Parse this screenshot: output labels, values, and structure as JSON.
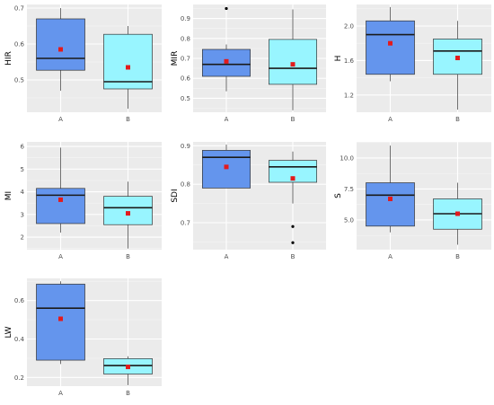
{
  "chart_data": [
    {
      "type": "boxplot",
      "ylabel": "HIR",
      "categories": [
        "A",
        "B"
      ],
      "ylim": [
        0.41,
        0.71
      ],
      "yticks": [
        0.5,
        0.6,
        0.7
      ],
      "ytick_labels": [
        "0.5",
        "0.6",
        "0.7"
      ],
      "boxes": [
        {
          "category": "A",
          "min": 0.47,
          "q1": 0.527,
          "median": 0.56,
          "q3": 0.67,
          "max": 0.7,
          "mean": 0.585,
          "outliers": []
        },
        {
          "category": "B",
          "min": 0.42,
          "q1": 0.475,
          "median": 0.495,
          "q3": 0.627,
          "max": 0.65,
          "mean": 0.535,
          "outliers": []
        }
      ]
    },
    {
      "type": "boxplot",
      "ylabel": "MIR",
      "categories": [
        "A",
        "B"
      ],
      "ylim": [
        0.43,
        0.97
      ],
      "yticks": [
        0.5,
        0.6,
        0.7,
        0.8,
        0.9
      ],
      "ytick_labels": [
        "0.5",
        "0.6",
        "0.7",
        "0.8",
        "0.9"
      ],
      "boxes": [
        {
          "category": "A",
          "min": 0.535,
          "q1": 0.61,
          "median": 0.67,
          "q3": 0.745,
          "max": 0.77,
          "mean": 0.685,
          "outliers": [
            0.95
          ]
        },
        {
          "category": "B",
          "min": 0.44,
          "q1": 0.57,
          "median": 0.65,
          "q3": 0.795,
          "max": 0.945,
          "mean": 0.67,
          "outliers": []
        }
      ]
    },
    {
      "type": "boxplot",
      "ylabel": "H",
      "categories": [
        "A",
        "B"
      ],
      "ylim": [
        1.0,
        2.25
      ],
      "yticks": [
        1.2,
        1.6,
        2.0
      ],
      "ytick_labels": [
        "1.2",
        "1.6",
        "2.0"
      ],
      "boxes": [
        {
          "category": "A",
          "min": 1.36,
          "q1": 1.44,
          "median": 1.9,
          "q3": 2.06,
          "max": 2.22,
          "mean": 1.8,
          "outliers": []
        },
        {
          "category": "B",
          "min": 1.03,
          "q1": 1.44,
          "median": 1.71,
          "q3": 1.85,
          "max": 2.06,
          "mean": 1.63,
          "outliers": []
        }
      ]
    },
    {
      "type": "boxplot",
      "ylabel": "MI",
      "categories": [
        "A",
        "B"
      ],
      "ylim": [
        1.45,
        6.2
      ],
      "yticks": [
        2,
        3,
        4,
        5,
        6
      ],
      "ytick_labels": [
        "2",
        "3",
        "4",
        "5",
        "6"
      ],
      "boxes": [
        {
          "category": "A",
          "min": 2.2,
          "q1": 2.6,
          "median": 3.85,
          "q3": 4.15,
          "max": 5.95,
          "mean": 3.65,
          "outliers": []
        },
        {
          "category": "B",
          "min": 1.5,
          "q1": 2.55,
          "median": 3.3,
          "q3": 3.8,
          "max": 4.45,
          "mean": 3.05,
          "outliers": []
        }
      ]
    },
    {
      "type": "boxplot",
      "ylabel": "SDI",
      "categories": [
        "A",
        "B"
      ],
      "ylim": [
        0.63,
        0.91
      ],
      "yticks": [
        0.7,
        0.8,
        0.9
      ],
      "ytick_labels": [
        "0.7",
        "0.8",
        "0.9"
      ],
      "boxes": [
        {
          "category": "A",
          "min": 0.79,
          "q1": 0.79,
          "median": 0.87,
          "q3": 0.888,
          "max": 0.903,
          "mean": 0.845,
          "outliers": []
        },
        {
          "category": "B",
          "min": 0.75,
          "q1": 0.805,
          "median": 0.845,
          "q3": 0.862,
          "max": 0.885,
          "mean": 0.815,
          "outliers": [
            0.69,
            0.648
          ]
        }
      ]
    },
    {
      "type": "boxplot",
      "ylabel": "S",
      "categories": [
        "A",
        "B"
      ],
      "ylim": [
        2.6,
        11.3
      ],
      "yticks": [
        5.0,
        7.5,
        10.0
      ],
      "ytick_labels": [
        "5.0",
        "7.5",
        "10.0"
      ],
      "boxes": [
        {
          "category": "A",
          "min": 4.0,
          "q1": 4.5,
          "median": 7.0,
          "q3": 8.0,
          "max": 11.0,
          "mean": 6.7,
          "outliers": []
        },
        {
          "category": "B",
          "min": 3.0,
          "q1": 4.25,
          "median": 5.5,
          "q3": 6.7,
          "max": 8.0,
          "mean": 5.5,
          "outliers": []
        }
      ]
    },
    {
      "type": "boxplot",
      "ylabel": "LW",
      "categories": [
        "A",
        "B"
      ],
      "ylim": [
        0.155,
        0.715
      ],
      "yticks": [
        0.2,
        0.4,
        0.6
      ],
      "ytick_labels": [
        "0.2",
        "0.4",
        "0.6"
      ],
      "boxes": [
        {
          "category": "A",
          "min": 0.27,
          "q1": 0.29,
          "median": 0.56,
          "q3": 0.685,
          "max": 0.7,
          "mean": 0.505,
          "outliers": []
        },
        {
          "category": "B",
          "min": 0.16,
          "q1": 0.218,
          "median": 0.262,
          "q3": 0.298,
          "max": 0.31,
          "mean": 0.255,
          "outliers": []
        }
      ]
    }
  ],
  "colors": {
    "panel_background": "#ebebeb",
    "grid_major": "#ffffff",
    "grid_minor": "#f5f5f5",
    "group_A_fill": "#6495ed",
    "group_B_fill": "#98f5ff",
    "box_outline": "#333333",
    "mean_marker": "#e31a1c",
    "outlier": "#000000"
  }
}
